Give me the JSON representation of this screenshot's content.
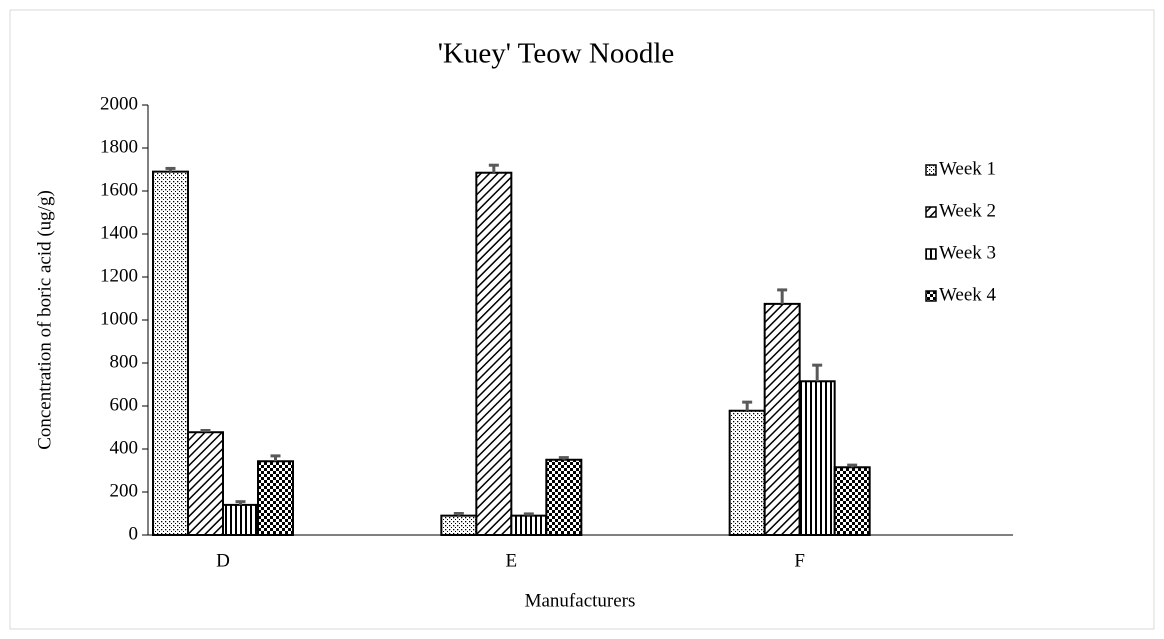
{
  "chart_data": {
    "type": "bar",
    "title": "'Kuey' Teow Noodle",
    "x_label": "Manufacturers",
    "y_label": "Concentration of boric acid (ug/g)",
    "categories": [
      "D",
      "E",
      "F"
    ],
    "series": [
      {
        "name": "Week 1",
        "color": "#000000",
        "values": [
          1690,
          90,
          578
        ],
        "errors": [
          15,
          10,
          40
        ]
      },
      {
        "name": "Week 2",
        "color": "#000000",
        "values": [
          478,
          1685,
          1075
        ],
        "errors": [
          8,
          35,
          65
        ]
      },
      {
        "name": "Week 3",
        "color": "#000000",
        "values": [
          140,
          90,
          715
        ],
        "errors": [
          15,
          8,
          75
        ]
      },
      {
        "name": "Week 4",
        "color": "#000000",
        "values": [
          343,
          350,
          315
        ],
        "errors": [
          25,
          10,
          10
        ]
      }
    ],
    "ylim": [
      0,
      2000
    ],
    "yticks": [
      0,
      200,
      400,
      600,
      800,
      1000,
      1200,
      1400,
      1600,
      1800,
      2000
    ],
    "grid": false,
    "legend": "right"
  }
}
